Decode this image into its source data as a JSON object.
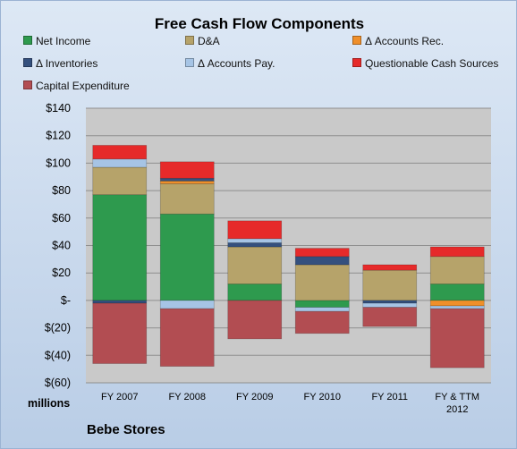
{
  "chart_data": {
    "type": "bar",
    "stacked": true,
    "title": "Free Cash Flow Components",
    "categories": [
      "FY 2007",
      "FY 2008",
      "FY 2009",
      "FY 2010",
      "FY 2011",
      "FY & TTM 2012"
    ],
    "ylim": [
      -60,
      140
    ],
    "yticks": [
      140,
      120,
      100,
      80,
      60,
      40,
      20,
      0,
      -20,
      -40,
      -60
    ],
    "ytick_labels": [
      "$140",
      "$120",
      "$100",
      "$80",
      "$60",
      "$40",
      "$20",
      "$-",
      "$(20)",
      "$(40)",
      "$(60)"
    ],
    "units_label": "millions",
    "grid": true,
    "legend_position": "top",
    "series": [
      {
        "name": "Net Income",
        "color": "#2e9a4e",
        "values": [
          77,
          63,
          12,
          -5,
          0,
          12
        ]
      },
      {
        "name": "D&A",
        "color": "#b6a36a",
        "values": [
          20,
          22,
          27,
          26,
          22,
          20
        ]
      },
      {
        "name": "Δ Accounts Rec.",
        "color": "#ef8f2a",
        "values": [
          0,
          2,
          0,
          0,
          0,
          -4
        ]
      },
      {
        "name": "Δ Inventories",
        "color": "#34507e",
        "values": [
          -2,
          2,
          3,
          6,
          -2,
          0
        ]
      },
      {
        "name": "Δ Accounts Pay.",
        "color": "#a6c4e5",
        "values": [
          6,
          -6,
          3,
          -3,
          -3,
          -2
        ]
      },
      {
        "name": "Questionable Cash Sources",
        "color": "#e62a2a",
        "values": [
          10,
          12,
          13,
          6,
          4,
          7
        ]
      },
      {
        "name": "Capital Expenditure",
        "color": "#b24d52",
        "values": [
          -44,
          -42,
          -28,
          -16,
          -14,
          -43
        ]
      }
    ]
  },
  "footer": {
    "company": "Bebe Stores"
  }
}
